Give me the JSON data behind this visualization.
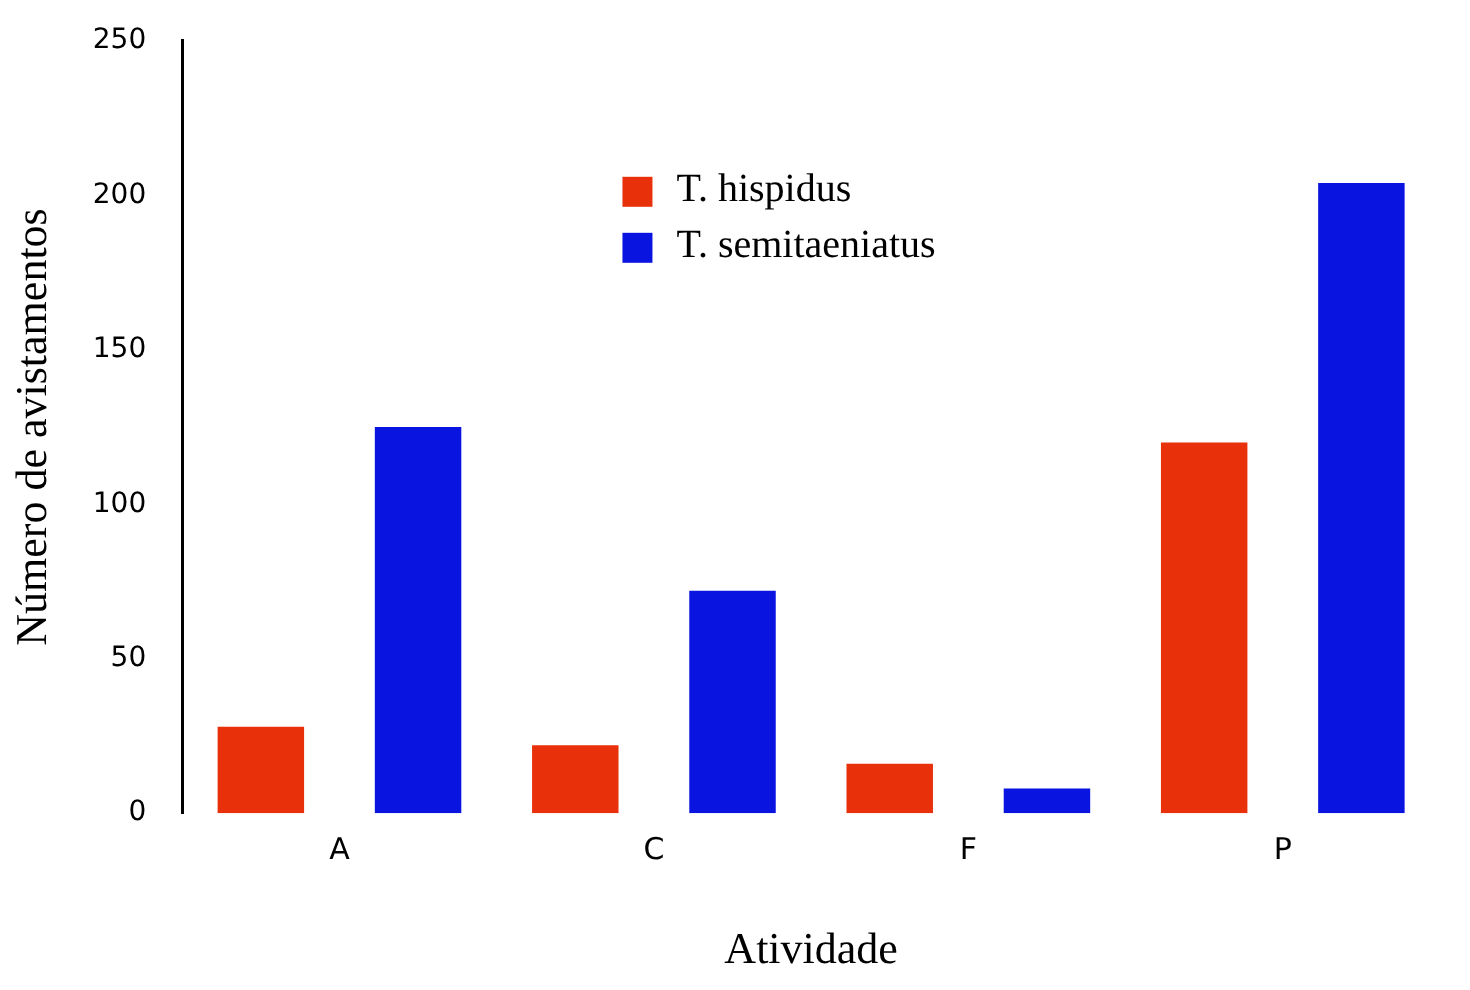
{
  "chart_data": {
    "type": "bar",
    "xlabel": "Atividade",
    "ylabel": "Número de avistamentos",
    "categories": [
      "A",
      "C",
      "F",
      "P"
    ],
    "series": [
      {
        "name": "T. hispidus",
        "color": "#e8300a",
        "values": [
          28,
          22,
          16,
          120
        ]
      },
      {
        "name": "T. semitaeniatus",
        "color": "#0a14e0",
        "values": [
          125,
          72,
          8,
          204
        ]
      }
    ],
    "ylim": [
      0,
      250
    ],
    "yticks": [
      0,
      50,
      100,
      150,
      200,
      250
    ],
    "grid": false,
    "legend": "top"
  }
}
